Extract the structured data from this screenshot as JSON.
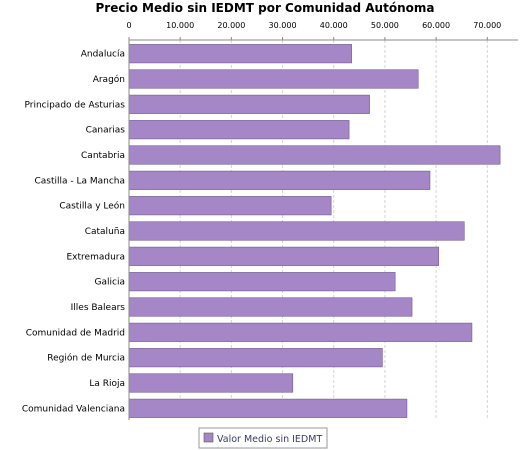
{
  "chart_data": {
    "type": "bar",
    "orientation": "horizontal",
    "title": "Precio Medio sin IEDMT por Comunidad Autónoma",
    "xlabel": "",
    "ylabel": "",
    "xlim": [
      0,
      76000
    ],
    "ticks": [
      {
        "value": 0,
        "label": "0"
      },
      {
        "value": 10000,
        "label": "10.000"
      },
      {
        "value": 20000,
        "label": "20.000"
      },
      {
        "value": 30000,
        "label": "30.000"
      },
      {
        "value": 40000,
        "label": "40.000"
      },
      {
        "value": 50000,
        "label": "50.000"
      },
      {
        "value": 60000,
        "label": "60.000"
      },
      {
        "value": 70000,
        "label": "70.000"
      }
    ],
    "tick_position": "top",
    "grid": true,
    "legend_position": "bottom",
    "categories": [
      "Andalucía",
      "Aragón",
      "Principado de Asturias",
      "Canarias",
      "Cantabria",
      "Castilla - La Mancha",
      "Castilla y León",
      "Cataluña",
      "Extremadura",
      "Galicia",
      "Illes Balears",
      "Comunidad de Madrid",
      "Región de Murcia",
      "La Rioja",
      "Comunidad Valenciana"
    ],
    "series": [
      {
        "name": "Valor Medio sin IEDMT",
        "color": "#a587c8",
        "values": [
          43500,
          56500,
          47000,
          43000,
          72500,
          58800,
          39500,
          65500,
          60500,
          52000,
          55300,
          67000,
          49500,
          32000,
          54300
        ]
      }
    ]
  }
}
